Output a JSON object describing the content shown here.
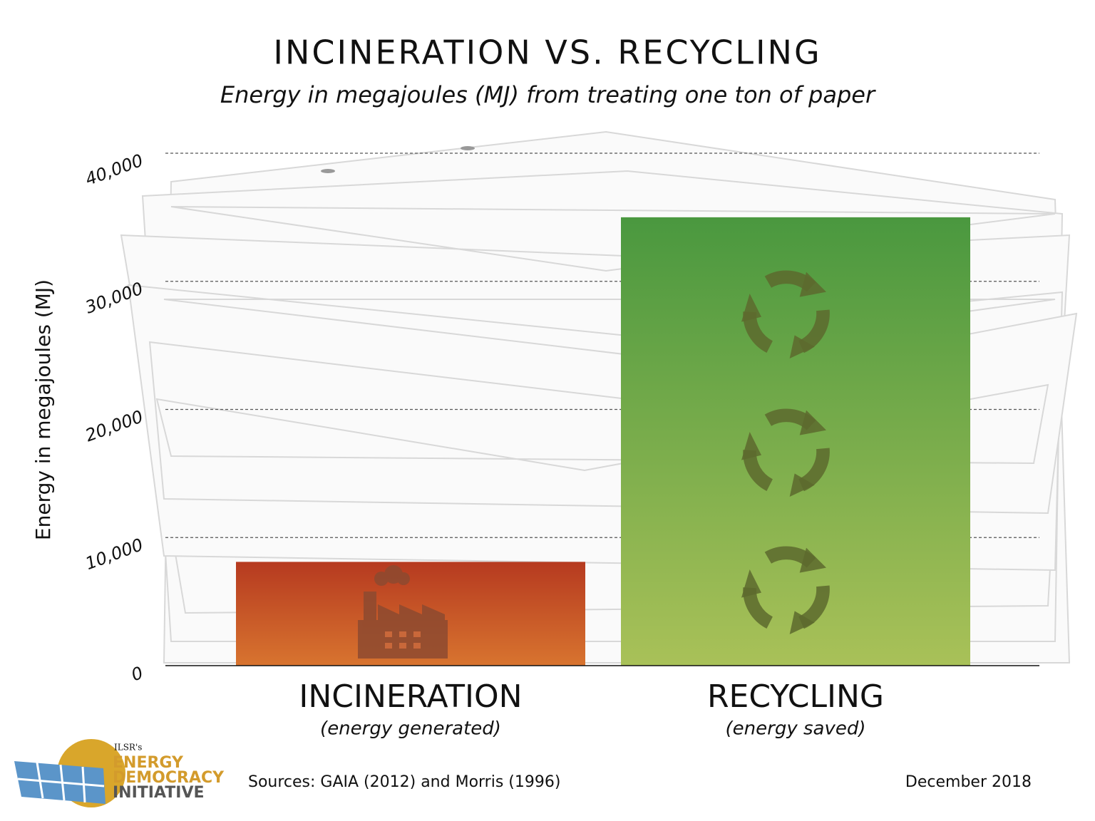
{
  "chart_data": {
    "type": "bar",
    "title": "INCINERATION VS. RECYCLING",
    "subtitle": "Energy in megajoules (MJ) from treating one ton of paper",
    "y_label": "Energy in megajoules (MJ)",
    "categories": [
      "INCINERATION",
      "RECYCLING"
    ],
    "category_notes": [
      "(energy generated)",
      "(energy saved)"
    ],
    "values": [
      8100,
      35000
    ],
    "gradients": [
      [
        "#b63a20",
        "#d8742f"
      ],
      [
        "#4a983f",
        "#a9c158"
      ]
    ],
    "ylim": [
      0,
      40000
    ],
    "yticks": [
      0,
      {
        "value": 10000,
        "label": "10,000"
      },
      {
        "value": 20000,
        "label": "20,000"
      },
      {
        "value": 30000,
        "label": "30,000"
      },
      {
        "value": 40000,
        "label": "40,000"
      }
    ],
    "grid": true
  },
  "footer": {
    "sources": "Sources: GAIA (2012) and Morris (1996)",
    "date": "December 2018"
  },
  "logo": {
    "org": "ILSR's",
    "line1": "ENERGY",
    "line2": "DEMOCRACY",
    "line3": "INITIATIVE"
  }
}
